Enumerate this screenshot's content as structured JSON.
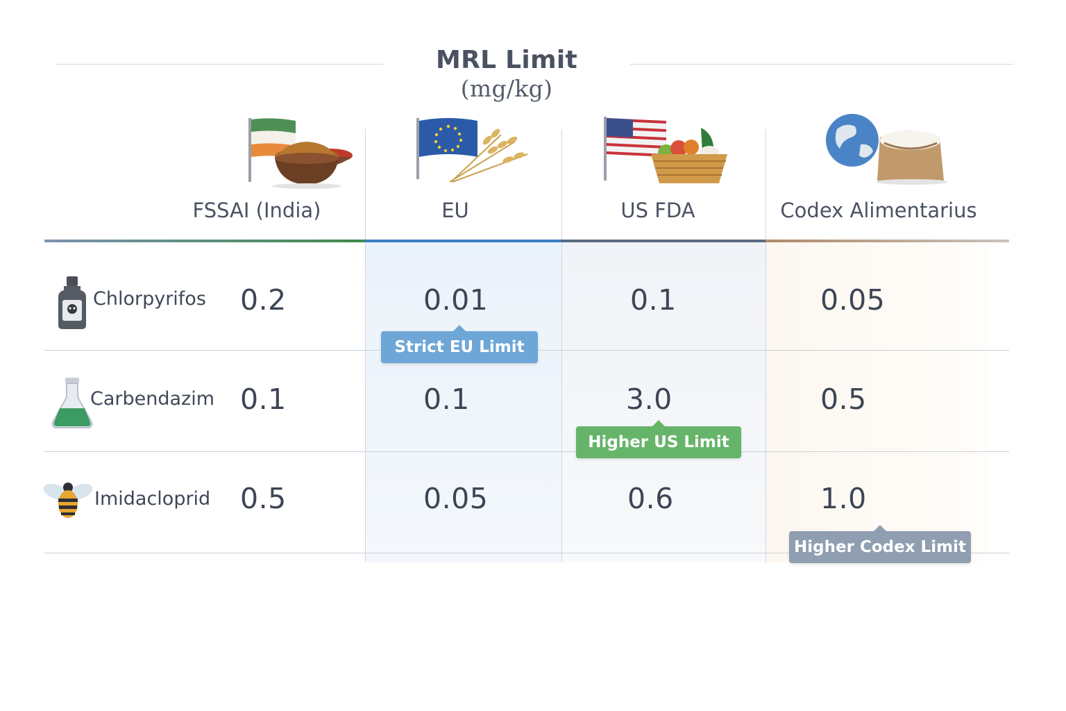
{
  "chart_data": {
    "type": "table",
    "title": "MRL Limit",
    "title_unit": "(mg/kg)",
    "columns": [
      "FSSAI (India)",
      "EU",
      "US FDA",
      "Codex Alimentarius"
    ],
    "rows": [
      {
        "name": "Chlorpyrifos",
        "icon": "poison-bottle-icon",
        "values": [
          "0.2",
          "0.01",
          "0.1",
          "0.05"
        ]
      },
      {
        "name": "Carbendazim",
        "icon": "flask-icon",
        "values": [
          "0.1",
          "0.1",
          "3.0",
          "0.5"
        ]
      },
      {
        "name": "Imidacloprid",
        "icon": "bee-icon",
        "values": [
          "0.5",
          "0.05",
          "0.6",
          "1.0"
        ]
      }
    ],
    "annotations": [
      {
        "text": "Strict EU Limit",
        "row": "Chlorpyrifos",
        "column": "EU",
        "color": "#6ea6d8"
      },
      {
        "text": "Higher US Limit",
        "row": "Carbendazim",
        "column": "US FDA",
        "color": "#66b469"
      },
      {
        "text": "Higher Codex Limit",
        "row": "Imidacloprid",
        "column": "Codex Alimentarius",
        "color": "#8f9eb0"
      }
    ]
  },
  "columns_meta": [
    {
      "label": "FSSAI (India)",
      "illustration": "india-flag-spice-bowls-icon",
      "accent": "#3f8a4a"
    },
    {
      "label": "EU",
      "illustration": "eu-flag-wheat-icon",
      "accent": "#3b7fc4"
    },
    {
      "label": "US FDA",
      "illustration": "us-flag-vegetable-basket-icon",
      "accent": "#5a6b82"
    },
    {
      "label": "Codex Alimentarius",
      "illustration": "globe-rice-sack-icon",
      "accent": "#b08a6a"
    }
  ],
  "colors": {
    "eu_tint": "#eef5fb",
    "us_tint": "#f3f6f9",
    "codex_tint": "#fdf9f3"
  }
}
